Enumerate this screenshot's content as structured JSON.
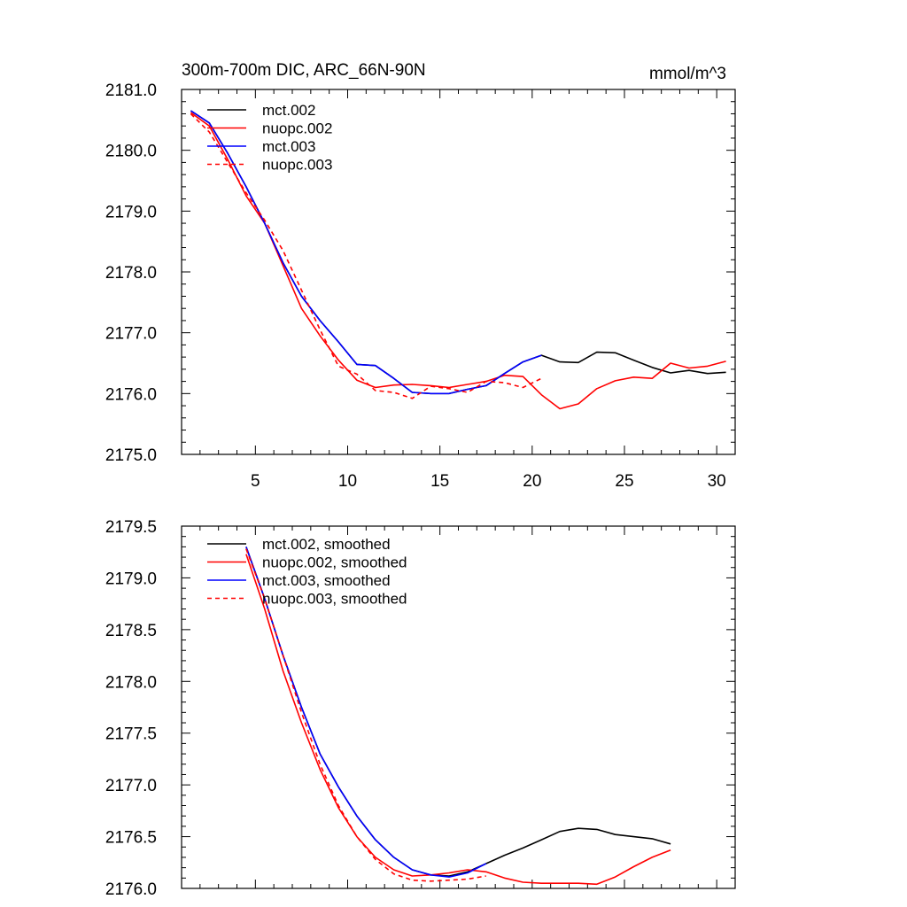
{
  "chart_data": [
    {
      "type": "line",
      "title": "300m-700m DIC, ARC_66N-90N",
      "units": "mmol/m^3",
      "xlim": [
        1,
        31
      ],
      "ylim": [
        2175.0,
        2181.0
      ],
      "xticks": [
        5,
        10,
        15,
        20,
        25,
        30
      ],
      "xtick_labels": [
        "5",
        "10",
        "15",
        "20",
        "25",
        "30"
      ],
      "yticks": [
        2175.0,
        2176.0,
        2177.0,
        2178.0,
        2179.0,
        2180.0,
        2181.0
      ],
      "ytick_labels": [
        "2175.0",
        "2176.0",
        "2177.0",
        "2178.0",
        "2179.0",
        "2180.0",
        "2181.0"
      ],
      "legend_position": "top-left",
      "series": [
        {
          "name": "mct.002",
          "color": "#000000",
          "dash": "solid",
          "x": [
            1.5,
            2.5,
            3.5,
            4.5,
            5.5,
            6.5,
            7.5,
            8.5,
            9.5,
            10.5,
            11.5,
            12.5,
            13.5,
            14.5,
            15.5,
            16.5,
            17.5,
            18.5,
            19.5,
            20.5,
            21.5,
            22.5,
            23.5,
            24.5,
            25.5,
            26.5,
            27.5,
            28.5,
            29.5,
            30.5
          ],
          "y": [
            2180.65,
            2180.45,
            2179.95,
            2179.4,
            2178.8,
            2178.15,
            2177.6,
            2177.2,
            2176.85,
            2176.48,
            2176.46,
            2176.25,
            2176.02,
            2176.0,
            2176.0,
            2176.07,
            2176.13,
            2176.33,
            2176.52,
            2176.63,
            2176.52,
            2176.51,
            2176.68,
            2176.67,
            2176.55,
            2176.43,
            2176.34,
            2176.38,
            2176.33,
            2176.35
          ]
        },
        {
          "name": "nuopc.002",
          "color": "#ff0000",
          "dash": "solid",
          "x": [
            1.5,
            2.5,
            3.5,
            4.5,
            5.5,
            6.5,
            7.5,
            8.5,
            9.5,
            10.5,
            11.5,
            12.5,
            13.5,
            14.5,
            15.5,
            16.5,
            17.5,
            18.5,
            19.5,
            20.5,
            21.5,
            22.5,
            23.5,
            24.5,
            25.5,
            26.5,
            27.5,
            28.5,
            29.5,
            30.5
          ],
          "y": [
            2180.62,
            2180.4,
            2179.85,
            2179.25,
            2178.8,
            2178.1,
            2177.4,
            2176.95,
            2176.55,
            2176.22,
            2176.1,
            2176.14,
            2176.15,
            2176.13,
            2176.1,
            2176.15,
            2176.2,
            2176.3,
            2176.28,
            2175.98,
            2175.75,
            2175.83,
            2176.08,
            2176.21,
            2176.27,
            2176.25,
            2176.5,
            2176.42,
            2176.45,
            2176.53
          ]
        },
        {
          "name": "mct.003",
          "color": "#0000ff",
          "dash": "solid",
          "x": [
            1.5,
            2.5,
            3.5,
            4.5,
            5.5,
            6.5,
            7.5,
            8.5,
            9.5,
            10.5,
            11.5,
            12.5,
            13.5,
            14.5,
            15.5,
            16.5,
            17.5,
            18.5,
            19.5,
            20.5
          ],
          "y": [
            2180.65,
            2180.45,
            2179.95,
            2179.4,
            2178.8,
            2178.15,
            2177.6,
            2177.2,
            2176.85,
            2176.48,
            2176.46,
            2176.25,
            2176.02,
            2176.0,
            2176.0,
            2176.07,
            2176.13,
            2176.33,
            2176.52,
            2176.63
          ]
        },
        {
          "name": "nuopc.003",
          "color": "#ff0000",
          "dash": "dashed",
          "x": [
            1.5,
            2.5,
            3.5,
            4.5,
            5.5,
            6.5,
            7.5,
            8.5,
            9.5,
            10.5,
            11.5,
            12.5,
            13.5,
            14.5,
            15.5,
            16.5,
            17.5,
            18.5,
            19.5,
            20.5
          ],
          "y": [
            2180.6,
            2180.3,
            2179.8,
            2179.3,
            2178.85,
            2178.35,
            2177.7,
            2177.05,
            2176.45,
            2176.32,
            2176.05,
            2176.02,
            2175.92,
            2176.12,
            2176.08,
            2176.02,
            2176.2,
            2176.18,
            2176.1,
            2176.25
          ]
        }
      ]
    },
    {
      "type": "line",
      "title": "",
      "xlim": [
        1,
        31
      ],
      "ylim": [
        2176.0,
        2179.5
      ],
      "xticks": [
        5,
        10,
        15,
        20,
        25,
        30
      ],
      "xtick_labels": [],
      "yticks": [
        2176.0,
        2176.5,
        2177.0,
        2177.5,
        2178.0,
        2178.5,
        2179.0,
        2179.5
      ],
      "ytick_labels": [
        "2176.0",
        "2176.5",
        "2177.0",
        "2177.5",
        "2178.0",
        "2178.5",
        "2179.0",
        "2179.5"
      ],
      "legend_position": "top-left",
      "series": [
        {
          "name": "mct.002, smoothed",
          "color": "#000000",
          "dash": "solid",
          "x": [
            4.5,
            5.5,
            6.5,
            7.5,
            8.5,
            9.5,
            10.5,
            11.5,
            12.5,
            13.5,
            14.5,
            15.5,
            16.5,
            17.5,
            18.5,
            19.5,
            20.5,
            21.5,
            22.5,
            23.5,
            24.5,
            25.5,
            26.5,
            27.5
          ],
          "y": [
            2179.3,
            2178.8,
            2178.25,
            2177.75,
            2177.3,
            2176.98,
            2176.7,
            2176.47,
            2176.3,
            2176.18,
            2176.13,
            2176.12,
            2176.16,
            2176.24,
            2176.32,
            2176.39,
            2176.47,
            2176.55,
            2176.58,
            2176.57,
            2176.52,
            2176.5,
            2176.48,
            2176.43
          ]
        },
        {
          "name": "nuopc.002, smoothed",
          "color": "#ff0000",
          "dash": "solid",
          "x": [
            4.5,
            5.5,
            6.5,
            7.5,
            8.5,
            9.5,
            10.5,
            11.5,
            12.5,
            13.5,
            14.5,
            15.5,
            16.5,
            17.5,
            18.5,
            19.5,
            20.5,
            21.5,
            22.5,
            23.5,
            24.5,
            25.5,
            26.5,
            27.5
          ],
          "y": [
            2179.23,
            2178.7,
            2178.1,
            2177.6,
            2177.15,
            2176.78,
            2176.5,
            2176.3,
            2176.18,
            2176.12,
            2176.13,
            2176.15,
            2176.18,
            2176.16,
            2176.1,
            2176.06,
            2176.05,
            2176.05,
            2176.05,
            2176.04,
            2176.11,
            2176.21,
            2176.3,
            2176.37
          ]
        },
        {
          "name": "mct.003, smoothed",
          "color": "#0000ff",
          "dash": "solid",
          "x": [
            4.5,
            5.5,
            6.5,
            7.5,
            8.5,
            9.5,
            10.5,
            11.5,
            12.5,
            13.5,
            14.5,
            15.5,
            16.5,
            17.5
          ],
          "y": [
            2179.3,
            2178.8,
            2178.25,
            2177.75,
            2177.3,
            2176.98,
            2176.7,
            2176.47,
            2176.3,
            2176.18,
            2176.13,
            2176.11,
            2176.15,
            2176.24
          ]
        },
        {
          "name": "nuopc.003, smoothed",
          "color": "#ff0000",
          "dash": "dashed",
          "x": [
            4.5,
            5.5,
            6.5,
            7.5,
            8.5,
            9.5,
            10.5,
            11.5,
            12.5,
            13.5,
            14.5,
            15.5,
            16.5,
            17.5
          ],
          "y": [
            2179.28,
            2178.8,
            2178.25,
            2177.7,
            2177.2,
            2176.8,
            2176.5,
            2176.28,
            2176.14,
            2176.08,
            2176.07,
            2176.08,
            2176.09,
            2176.12
          ]
        }
      ]
    }
  ]
}
